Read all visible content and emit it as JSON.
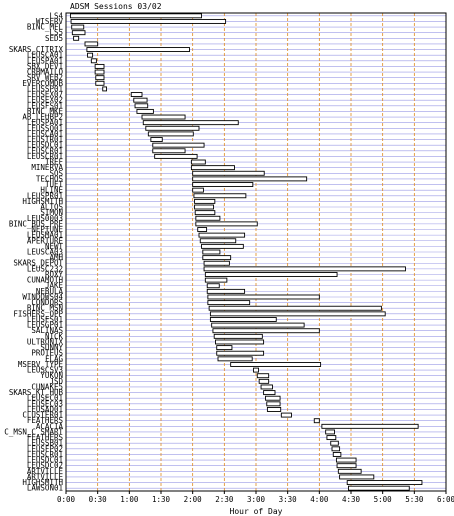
{
  "chart_data": {
    "type": "bar",
    "orientation": "horizontal-gantt",
    "title": "ADSM Sessions 03/02",
    "xlabel": "Hour of Day",
    "ylabel": "",
    "x_unit": "hours",
    "xlim": [
      0,
      6
    ],
    "x_ticks": [
      {
        "v": 0,
        "label": "0:00"
      },
      {
        "v": 0.5,
        "label": "0:30"
      },
      {
        "v": 1,
        "label": "1:00"
      },
      {
        "v": 1.5,
        "label": "1:30"
      },
      {
        "v": 2,
        "label": "2:00"
      },
      {
        "v": 2.5,
        "label": "2:30"
      },
      {
        "v": 3,
        "label": "3:00"
      },
      {
        "v": 3.5,
        "label": "3:30"
      },
      {
        "v": 4,
        "label": "4:00"
      },
      {
        "v": 4.5,
        "label": "4:30"
      },
      {
        "v": 5,
        "label": "5:00"
      },
      {
        "v": 5.5,
        "label": "5:30"
      },
      {
        "v": 6,
        "label": "6:00"
      }
    ],
    "grid": {
      "horizontal": true,
      "vertical": true
    },
    "colors": {
      "hgrid": "#9a9ae6",
      "vgrid": "#e08a1e",
      "bar_fill": "#ffffff",
      "bar_edge": "#000000"
    },
    "sessions": [
      {
        "name": "LS4",
        "start": 0.07,
        "end": 2.14
      },
      {
        "name": "WISERV",
        "start": 0.08,
        "end": 2.52
      },
      {
        "name": "BINC_MFL",
        "start": 0.09,
        "end": 0.28
      },
      {
        "name": "LS5",
        "start": 0.1,
        "end": 0.3
      },
      {
        "name": "SED5",
        "start": 0.12,
        "end": 0.2
      },
      {
        "name": "",
        "start": 0.3,
        "end": 0.5
      },
      {
        "name": "SKARS_CITRIX",
        "start": 0.33,
        "end": 1.95
      },
      {
        "name": "LEUSCA01",
        "start": 0.34,
        "end": 0.42
      },
      {
        "name": "LEUSPA01",
        "start": 0.4,
        "end": 0.48
      },
      {
        "name": "SBX_DEV1",
        "start": 0.46,
        "end": 0.6
      },
      {
        "name": "CRBMAILO",
        "start": 0.46,
        "end": 0.6
      },
      {
        "name": "SRV_WEB2",
        "start": 0.47,
        "end": 0.6
      },
      {
        "name": "EVERCOMDB",
        "start": 0.47,
        "end": 0.6
      },
      {
        "name": "LEUSSP01",
        "start": 0.58,
        "end": 0.64
      },
      {
        "name": "LEUSEX07",
        "start": 1.03,
        "end": 1.2
      },
      {
        "name": "LEUSEX02",
        "start": 1.07,
        "end": 1.28
      },
      {
        "name": "LEUSFS01",
        "start": 1.09,
        "end": 1.29
      },
      {
        "name": "BINC_MKE",
        "start": 1.12,
        "end": 1.38
      },
      {
        "name": "AB_LEUBP2",
        "start": 1.2,
        "end": 1.88
      },
      {
        "name": "LEUSPA01",
        "start": 1.22,
        "end": 2.72
      },
      {
        "name": "LEUSSQ01",
        "start": 1.26,
        "end": 2.1
      },
      {
        "name": "LEUSCA01",
        "start": 1.3,
        "end": 2.01
      },
      {
        "name": "LEUSTR01",
        "start": 1.34,
        "end": 1.52
      },
      {
        "name": "LEUSDC01",
        "start": 1.37,
        "end": 2.18
      },
      {
        "name": "LEUSCR01",
        "start": 1.37,
        "end": 1.88
      },
      {
        "name": "LEUSCR01",
        "start": 1.4,
        "end": 2.07
      },
      {
        "name": "TREF",
        "start": 1.98,
        "end": 2.2
      },
      {
        "name": "MINERVA",
        "start": 1.98,
        "end": 2.66
      },
      {
        "name": "SOS",
        "start": 2.0,
        "end": 3.13
      },
      {
        "name": "TECHOS",
        "start": 2.0,
        "end": 3.8
      },
      {
        "name": "TUET",
        "start": 2.0,
        "end": 2.95
      },
      {
        "name": "HLINE",
        "start": 2.0,
        "end": 2.17
      },
      {
        "name": "LEUSPR01",
        "start": 2.02,
        "end": 2.84
      },
      {
        "name": "HIGHSMITH",
        "start": 2.03,
        "end": 2.35
      },
      {
        "name": "ALTOS",
        "start": 2.03,
        "end": 2.33
      },
      {
        "name": "SIMON",
        "start": 2.04,
        "end": 2.35
      },
      {
        "name": "LEUS0003",
        "start": 2.05,
        "end": 2.43
      },
      {
        "name": "BINC_BUS_PRE",
        "start": 2.05,
        "end": 3.02
      },
      {
        "name": "NEPTUNE",
        "start": 2.08,
        "end": 2.22
      },
      {
        "name": "LEUSMA01",
        "start": 2.1,
        "end": 2.82
      },
      {
        "name": "APERTURE",
        "start": 2.12,
        "end": 2.68
      },
      {
        "name": "NEWT",
        "start": 2.14,
        "end": 2.8
      },
      {
        "name": "LEUSCA03",
        "start": 2.16,
        "end": 2.43
      },
      {
        "name": "AMH",
        "start": 2.16,
        "end": 2.6
      },
      {
        "name": "SKARS_DEPOT",
        "start": 2.18,
        "end": 2.58
      },
      {
        "name": "LEUSC232",
        "start": 2.18,
        "end": 5.36
      },
      {
        "name": "ROXY",
        "start": 2.2,
        "end": 4.28
      },
      {
        "name": "CUNAMOTH",
        "start": 2.2,
        "end": 2.54
      },
      {
        "name": "JAKE",
        "start": 2.23,
        "end": 2.42
      },
      {
        "name": "NEBULA",
        "start": 2.23,
        "end": 2.82
      },
      {
        "name": "WINDOWS04",
        "start": 2.24,
        "end": 4.0
      },
      {
        "name": "CONDORS",
        "start": 2.24,
        "end": 2.9
      },
      {
        "name": "BINC_MSN",
        "start": 2.26,
        "end": 4.98
      },
      {
        "name": "FISHERS_OPP",
        "start": 2.28,
        "end": 5.04
      },
      {
        "name": "LEUSFS01",
        "start": 2.28,
        "end": 3.32
      },
      {
        "name": "LEUSGP01",
        "start": 2.3,
        "end": 3.76
      },
      {
        "name": "SALINAS",
        "start": 2.32,
        "end": 4.0
      },
      {
        "name": "NICK",
        "start": 2.34,
        "end": 3.1
      },
      {
        "name": "ULTRONIX",
        "start": 2.36,
        "end": 3.12
      },
      {
        "name": "SUNNY",
        "start": 2.38,
        "end": 2.62
      },
      {
        "name": "PROTEUS",
        "start": 2.38,
        "end": 3.12
      },
      {
        "name": "FLAG",
        "start": 2.4,
        "end": 2.94
      },
      {
        "name": "MSERV_TYPE",
        "start": 2.6,
        "end": 4.02
      },
      {
        "name": "LEUSCSV3",
        "start": 2.96,
        "end": 3.04
      },
      {
        "name": "YUKON",
        "start": 3.02,
        "end": 3.2
      },
      {
        "name": "JSD",
        "start": 3.05,
        "end": 3.2
      },
      {
        "name": "CUNAKE5",
        "start": 3.08,
        "end": 3.26
      },
      {
        "name": "SKARS_KT_HUB",
        "start": 3.12,
        "end": 3.3
      },
      {
        "name": "LEUSEC01",
        "start": 3.15,
        "end": 3.38
      },
      {
        "name": "LEUSEC03",
        "start": 3.17,
        "end": 3.38
      },
      {
        "name": "LEUSAD01",
        "start": 3.18,
        "end": 3.39
      },
      {
        "name": "CLUSTER01",
        "start": 3.4,
        "end": 3.56
      },
      {
        "name": "FEATHERS",
        "start": 3.92,
        "end": 4.0
      },
      {
        "name": "ACACIA",
        "start": 4.04,
        "end": 5.56
      },
      {
        "name": "C_MSN_C_SMART",
        "start": 4.1,
        "end": 4.24
      },
      {
        "name": "FEATHERS",
        "start": 4.12,
        "end": 4.26
      },
      {
        "name": "LEUSSB01",
        "start": 4.18,
        "end": 4.3
      },
      {
        "name": "LEUSFP02",
        "start": 4.2,
        "end": 4.32
      },
      {
        "name": "LEUSCR01",
        "start": 4.22,
        "end": 4.34
      },
      {
        "name": "LEUSDC01",
        "start": 4.27,
        "end": 4.58
      },
      {
        "name": "LEUSDC02",
        "start": 4.28,
        "end": 4.58
      },
      {
        "name": "ARTVILLE",
        "start": 4.3,
        "end": 4.66
      },
      {
        "name": "ARTVILLE",
        "start": 4.32,
        "end": 4.86
      },
      {
        "name": "HIGHSMITH",
        "start": 4.44,
        "end": 5.62
      },
      {
        "name": "LAWSON01",
        "start": 4.46,
        "end": 5.42
      }
    ]
  }
}
